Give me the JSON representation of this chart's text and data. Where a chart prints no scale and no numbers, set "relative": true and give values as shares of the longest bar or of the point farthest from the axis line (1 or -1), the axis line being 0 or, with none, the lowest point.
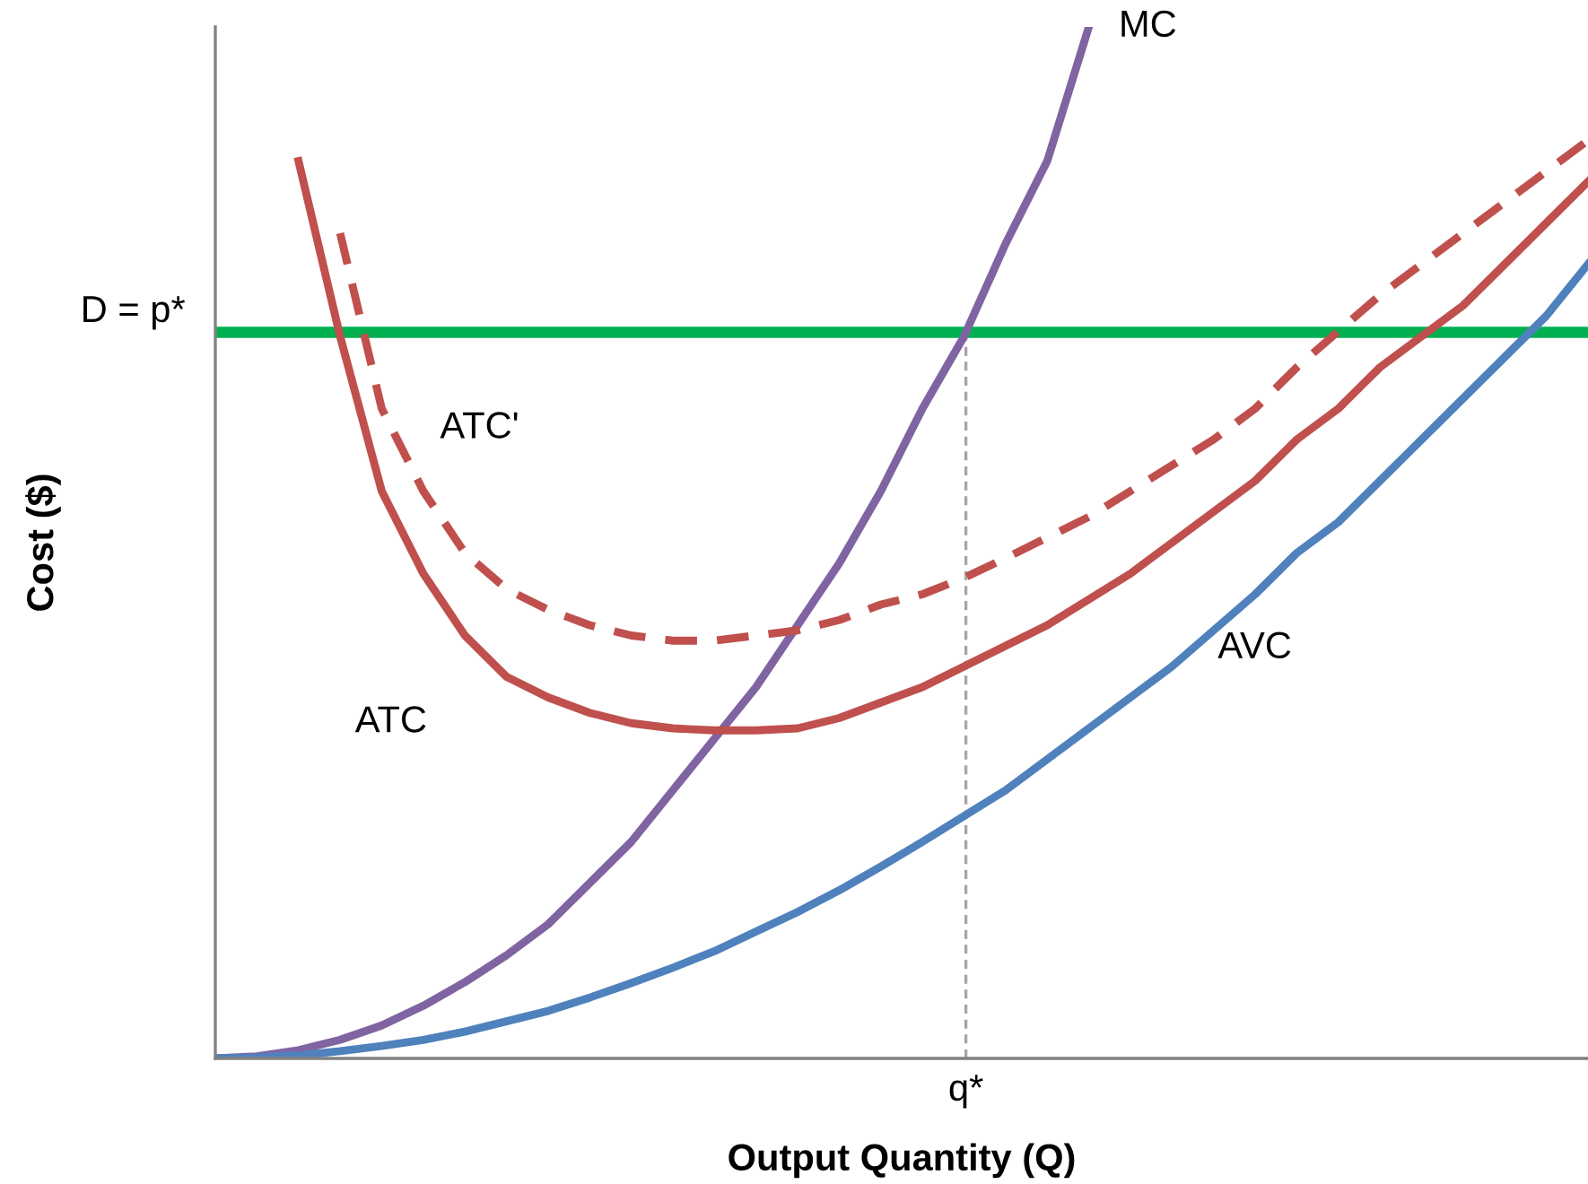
{
  "chart_data": {
    "type": "line",
    "relative": true,
    "xlabel": "Output Quantity (Q)",
    "ylabel": "Cost ($)",
    "legend": false,
    "grid": false,
    "marker": "none",
    "annotations": [
      "q*"
    ],
    "categories": [
      null,
      null,
      null,
      null,
      null,
      null,
      null,
      null,
      null,
      null,
      null,
      null,
      null,
      null,
      null,
      null,
      null,
      null,
      null,
      null,
      null,
      null,
      null,
      null,
      null,
      null,
      null,
      null,
      null,
      null,
      null,
      null,
      null,
      null
    ],
    "series": [
      {
        "name": "MC",
        "color": "#8064a2",
        "values": [
          0,
          0.002,
          0.008,
          0.018,
          0.032,
          0.051,
          0.074,
          0.1,
          0.13,
          0.17,
          0.21,
          0.26,
          0.31,
          0.36,
          0.42,
          0.48,
          0.55,
          0.63,
          0.7,
          0.79,
          0.87,
          1.0,
          null,
          null,
          null,
          null,
          null,
          null,
          null,
          null,
          null,
          null,
          null,
          null
        ]
      },
      {
        "name": "ATC",
        "color": "#c0504d",
        "values": [
          null,
          null,
          0.87,
          0.7,
          0.55,
          0.47,
          0.41,
          0.37,
          0.35,
          0.335,
          0.325,
          0.32,
          0.318,
          0.318,
          0.32,
          0.33,
          0.345,
          0.36,
          0.38,
          0.4,
          0.42,
          0.445,
          0.47,
          0.5,
          0.53,
          0.56,
          0.6,
          0.63,
          0.67,
          0.7,
          0.73,
          0.77,
          0.81,
          0.85
        ]
      },
      {
        "name": "ATC'",
        "color": "#c0504d",
        "line_style": "dashed",
        "values": [
          null,
          null,
          null,
          0.8,
          0.63,
          0.55,
          0.49,
          0.455,
          0.435,
          0.42,
          0.41,
          0.405,
          0.405,
          0.41,
          0.415,
          0.425,
          0.44,
          0.45,
          0.466,
          0.485,
          0.505,
          0.525,
          0.55,
          0.575,
          0.6,
          0.63,
          0.67,
          0.705,
          0.74,
          0.77,
          0.8,
          0.83,
          0.86,
          0.89
        ]
      },
      {
        "name": "AVC",
        "color": "#4f81bd",
        "values": [
          0,
          0.001,
          0.003,
          0.007,
          0.012,
          0.018,
          0.026,
          0.036,
          0.046,
          0.059,
          0.073,
          0.088,
          0.104,
          0.123,
          0.142,
          0.163,
          0.186,
          0.21,
          0.235,
          0.26,
          0.29,
          0.32,
          0.35,
          0.38,
          0.415,
          0.45,
          0.49,
          0.52,
          0.56,
          0.6,
          0.64,
          0.68,
          0.72,
          0.77
        ]
      }
    ],
    "ref_lines": [
      {
        "axis": "y",
        "value": 0.704,
        "label": "D = p*",
        "color": "#00b050",
        "line_style": "solid"
      }
    ]
  }
}
